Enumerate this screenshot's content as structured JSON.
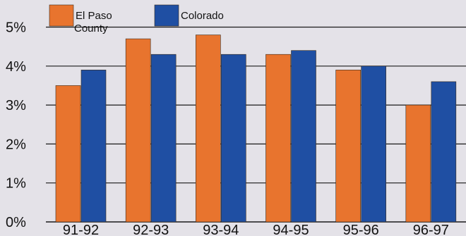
{
  "chart_data": {
    "type": "bar",
    "categories": [
      "91-92",
      "92-93",
      "93-94",
      "94-95",
      "95-96",
      "96-97"
    ],
    "series": [
      {
        "name": "El Paso County",
        "values": [
          3.5,
          4.7,
          4.8,
          4.3,
          3.9,
          3.0
        ],
        "color": "#e8742e"
      },
      {
        "name": "Colorado",
        "values": [
          3.9,
          4.3,
          4.3,
          4.4,
          4.0,
          3.6
        ],
        "color": "#1f4fa3"
      }
    ],
    "y_ticks": [
      "0%",
      "1%",
      "2%",
      "3%",
      "4%",
      "5%"
    ],
    "ylim": [
      0,
      5.5
    ],
    "grid": true,
    "legend_position": "top-left",
    "background_color": "#e4e2e8",
    "grid_color": "#1a1a1a"
  }
}
